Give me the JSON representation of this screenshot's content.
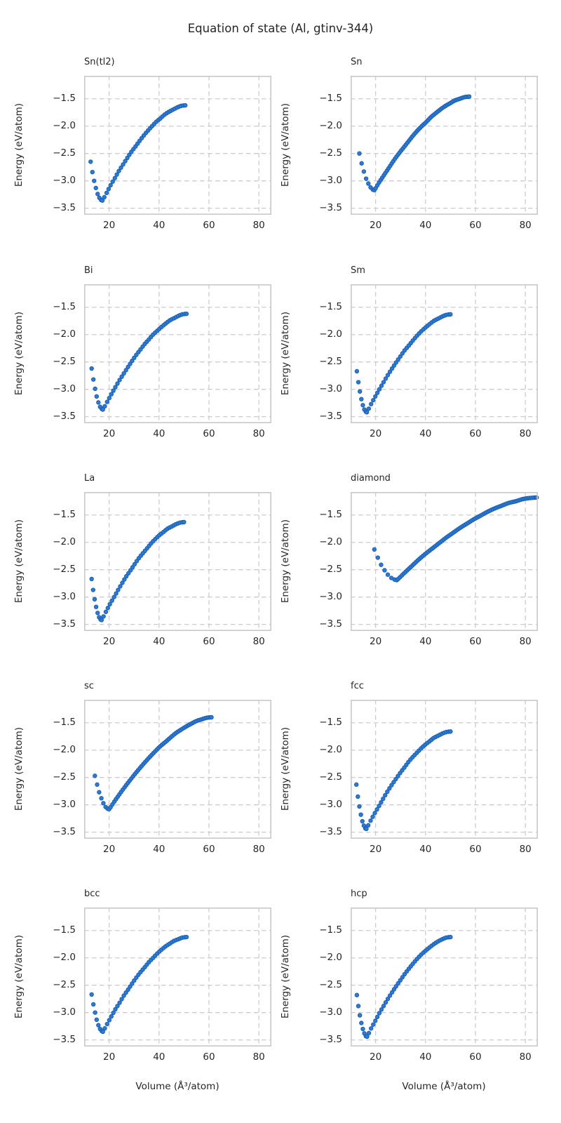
{
  "figure_title": "Equation of state (Al, gtinv-344)",
  "colors": {
    "marker_fill": "#2e7bd2",
    "marker_edge": "#1a5fb4",
    "grid": "#cccccc",
    "spine": "#c9c9c9",
    "text": "#262626",
    "background": "#ffffff"
  },
  "axes": {
    "xlabel": "Volume (Å³/atom)",
    "ylabel": "Energy (eV/atom)",
    "xlim": [
      10,
      85
    ],
    "ylim": [
      -3.62,
      -1.08
    ],
    "xticks": [
      20,
      40,
      60,
      80
    ],
    "yticks": [
      -1.5,
      -2.0,
      -2.5,
      -3.0,
      -3.5
    ],
    "xtick_labels": [
      "20",
      "40",
      "60",
      "80"
    ],
    "ytick_labels": [
      "−1.5",
      "−2.0",
      "−2.5",
      "−3.0",
      "−3.5"
    ],
    "grid": "dashed"
  },
  "chart_data": [
    {
      "type": "scatter",
      "title": "Sn(tl2)",
      "points": [
        [
          12.6,
          -2.65
        ],
        [
          13.3,
          -2.84
        ],
        [
          14.0,
          -3.0
        ],
        [
          14.7,
          -3.13
        ],
        [
          15.4,
          -3.24
        ],
        [
          16.1,
          -3.31
        ],
        [
          16.8,
          -3.35
        ],
        [
          17.3,
          -3.36
        ],
        [
          19.0,
          -3.22
        ],
        [
          20.6,
          -3.08
        ],
        [
          22.3,
          -2.95
        ],
        [
          23.9,
          -2.82
        ],
        [
          25.6,
          -2.7
        ],
        [
          27.3,
          -2.58
        ],
        [
          28.9,
          -2.47
        ],
        [
          30.6,
          -2.37
        ],
        [
          32.2,
          -2.27
        ],
        [
          33.9,
          -2.17
        ],
        [
          35.6,
          -2.08
        ],
        [
          37.2,
          -2.0
        ],
        [
          38.9,
          -1.92
        ],
        [
          40.5,
          -1.86
        ],
        [
          42.2,
          -1.79
        ],
        [
          43.9,
          -1.74
        ],
        [
          45.5,
          -1.7
        ],
        [
          47.2,
          -1.66
        ],
        [
          48.8,
          -1.63
        ],
        [
          50.5,
          -1.62
        ]
      ]
    },
    {
      "type": "scatter",
      "title": "Sn",
      "points": [
        [
          13.5,
          -2.5
        ],
        [
          14.4,
          -2.68
        ],
        [
          15.3,
          -2.83
        ],
        [
          16.2,
          -2.96
        ],
        [
          17.1,
          -3.05
        ],
        [
          18.0,
          -3.12
        ],
        [
          18.9,
          -3.16
        ],
        [
          19.5,
          -3.17
        ],
        [
          21.4,
          -3.03
        ],
        [
          23.3,
          -2.9
        ],
        [
          25.2,
          -2.77
        ],
        [
          27.1,
          -2.64
        ],
        [
          29.0,
          -2.52
        ],
        [
          30.9,
          -2.41
        ],
        [
          32.8,
          -2.3
        ],
        [
          34.7,
          -2.19
        ],
        [
          36.6,
          -2.09
        ],
        [
          38.5,
          -2.0
        ],
        [
          40.4,
          -1.92
        ],
        [
          42.3,
          -1.83
        ],
        [
          44.2,
          -1.76
        ],
        [
          46.1,
          -1.69
        ],
        [
          48.0,
          -1.63
        ],
        [
          49.9,
          -1.58
        ],
        [
          51.8,
          -1.53
        ],
        [
          53.7,
          -1.5
        ],
        [
          55.6,
          -1.47
        ],
        [
          57.5,
          -1.46
        ]
      ]
    },
    {
      "type": "scatter",
      "title": "Bi",
      "points": [
        [
          13.0,
          -2.62
        ],
        [
          13.7,
          -2.82
        ],
        [
          14.4,
          -2.99
        ],
        [
          15.0,
          -3.13
        ],
        [
          15.7,
          -3.24
        ],
        [
          16.4,
          -3.32
        ],
        [
          17.1,
          -3.36
        ],
        [
          17.5,
          -3.37
        ],
        [
          19.2,
          -3.23
        ],
        [
          20.9,
          -3.09
        ],
        [
          22.5,
          -2.96
        ],
        [
          24.2,
          -2.83
        ],
        [
          25.9,
          -2.71
        ],
        [
          27.6,
          -2.59
        ],
        [
          29.2,
          -2.48
        ],
        [
          30.9,
          -2.37
        ],
        [
          32.6,
          -2.27
        ],
        [
          34.3,
          -2.17
        ],
        [
          35.9,
          -2.09
        ],
        [
          37.6,
          -2.0
        ],
        [
          39.3,
          -1.93
        ],
        [
          41.0,
          -1.86
        ],
        [
          42.6,
          -1.8
        ],
        [
          44.3,
          -1.74
        ],
        [
          46.0,
          -1.7
        ],
        [
          47.7,
          -1.66
        ],
        [
          49.3,
          -1.63
        ],
        [
          51.0,
          -1.62
        ]
      ]
    },
    {
      "type": "scatter",
      "title": "Sm",
      "points": [
        [
          12.5,
          -2.67
        ],
        [
          13.1,
          -2.87
        ],
        [
          13.7,
          -3.04
        ],
        [
          14.3,
          -3.18
        ],
        [
          14.9,
          -3.29
        ],
        [
          15.5,
          -3.37
        ],
        [
          16.1,
          -3.41
        ],
        [
          16.5,
          -3.42
        ],
        [
          18.2,
          -3.27
        ],
        [
          19.9,
          -3.13
        ],
        [
          21.5,
          -3.0
        ],
        [
          23.2,
          -2.87
        ],
        [
          24.9,
          -2.74
        ],
        [
          26.6,
          -2.62
        ],
        [
          28.2,
          -2.51
        ],
        [
          29.9,
          -2.4
        ],
        [
          31.6,
          -2.29
        ],
        [
          33.3,
          -2.2
        ],
        [
          34.9,
          -2.11
        ],
        [
          36.6,
          -2.02
        ],
        [
          38.3,
          -1.94
        ],
        [
          40.0,
          -1.87
        ],
        [
          41.6,
          -1.81
        ],
        [
          43.3,
          -1.75
        ],
        [
          45.0,
          -1.71
        ],
        [
          46.7,
          -1.67
        ],
        [
          48.3,
          -1.64
        ],
        [
          50.0,
          -1.63
        ]
      ]
    },
    {
      "type": "scatter",
      "title": "La",
      "points": [
        [
          13.0,
          -2.67
        ],
        [
          13.6,
          -2.87
        ],
        [
          14.2,
          -3.04
        ],
        [
          14.8,
          -3.18
        ],
        [
          15.4,
          -3.29
        ],
        [
          16.0,
          -3.37
        ],
        [
          16.6,
          -3.41
        ],
        [
          17.0,
          -3.42
        ],
        [
          18.7,
          -3.27
        ],
        [
          20.3,
          -3.13
        ],
        [
          22.0,
          -3.0
        ],
        [
          23.6,
          -2.87
        ],
        [
          25.3,
          -2.74
        ],
        [
          26.9,
          -2.62
        ],
        [
          28.6,
          -2.51
        ],
        [
          30.2,
          -2.4
        ],
        [
          31.9,
          -2.29
        ],
        [
          33.5,
          -2.2
        ],
        [
          35.2,
          -2.11
        ],
        [
          36.8,
          -2.02
        ],
        [
          38.5,
          -1.94
        ],
        [
          40.1,
          -1.87
        ],
        [
          41.8,
          -1.81
        ],
        [
          43.4,
          -1.75
        ],
        [
          45.1,
          -1.71
        ],
        [
          46.7,
          -1.67
        ],
        [
          48.4,
          -1.64
        ],
        [
          50.0,
          -1.63
        ]
      ]
    },
    {
      "type": "scatter",
      "title": "diamond",
      "points": [
        [
          19.5,
          -2.13
        ],
        [
          20.9,
          -2.28
        ],
        [
          22.2,
          -2.41
        ],
        [
          23.6,
          -2.51
        ],
        [
          24.9,
          -2.59
        ],
        [
          26.3,
          -2.65
        ],
        [
          27.6,
          -2.68
        ],
        [
          28.5,
          -2.69
        ],
        [
          31.3,
          -2.57
        ],
        [
          34.1,
          -2.45
        ],
        [
          36.9,
          -2.33
        ],
        [
          39.7,
          -2.22
        ],
        [
          42.5,
          -2.12
        ],
        [
          45.3,
          -2.02
        ],
        [
          48.1,
          -1.92
        ],
        [
          50.9,
          -1.83
        ],
        [
          53.7,
          -1.74
        ],
        [
          56.5,
          -1.66
        ],
        [
          59.3,
          -1.58
        ],
        [
          62.1,
          -1.51
        ],
        [
          64.9,
          -1.44
        ],
        [
          67.7,
          -1.38
        ],
        [
          70.5,
          -1.33
        ],
        [
          73.3,
          -1.28
        ],
        [
          76.1,
          -1.25
        ],
        [
          78.9,
          -1.21
        ],
        [
          81.7,
          -1.19
        ],
        [
          84.5,
          -1.18
        ]
      ]
    },
    {
      "type": "scatter",
      "title": "sc",
      "points": [
        [
          14.3,
          -2.47
        ],
        [
          15.2,
          -2.63
        ],
        [
          16.0,
          -2.77
        ],
        [
          16.9,
          -2.88
        ],
        [
          17.7,
          -2.97
        ],
        [
          18.6,
          -3.04
        ],
        [
          19.4,
          -3.07
        ],
        [
          20.0,
          -3.08
        ],
        [
          22.1,
          -2.94
        ],
        [
          24.1,
          -2.81
        ],
        [
          26.2,
          -2.68
        ],
        [
          28.2,
          -2.56
        ],
        [
          30.3,
          -2.44
        ],
        [
          32.3,
          -2.33
        ],
        [
          34.4,
          -2.22
        ],
        [
          36.4,
          -2.12
        ],
        [
          38.5,
          -2.02
        ],
        [
          40.5,
          -1.93
        ],
        [
          42.6,
          -1.85
        ],
        [
          44.6,
          -1.77
        ],
        [
          46.7,
          -1.69
        ],
        [
          48.7,
          -1.63
        ],
        [
          50.8,
          -1.57
        ],
        [
          52.8,
          -1.52
        ],
        [
          54.9,
          -1.47
        ],
        [
          56.9,
          -1.44
        ],
        [
          59.0,
          -1.41
        ],
        [
          61.0,
          -1.4
        ]
      ]
    },
    {
      "type": "scatter",
      "title": "fcc",
      "points": [
        [
          12.3,
          -2.63
        ],
        [
          12.9,
          -2.85
        ],
        [
          13.5,
          -3.03
        ],
        [
          14.1,
          -3.18
        ],
        [
          14.7,
          -3.3
        ],
        [
          15.3,
          -3.38
        ],
        [
          15.9,
          -3.43
        ],
        [
          16.3,
          -3.44
        ],
        [
          18.0,
          -3.29
        ],
        [
          19.7,
          -3.15
        ],
        [
          21.4,
          -3.02
        ],
        [
          23.0,
          -2.89
        ],
        [
          24.7,
          -2.76
        ],
        [
          26.4,
          -2.64
        ],
        [
          28.1,
          -2.53
        ],
        [
          29.8,
          -2.42
        ],
        [
          31.5,
          -2.32
        ],
        [
          33.1,
          -2.22
        ],
        [
          34.8,
          -2.13
        ],
        [
          36.5,
          -2.05
        ],
        [
          38.2,
          -1.97
        ],
        [
          39.9,
          -1.9
        ],
        [
          41.6,
          -1.84
        ],
        [
          43.2,
          -1.78
        ],
        [
          44.9,
          -1.74
        ],
        [
          46.6,
          -1.7
        ],
        [
          48.3,
          -1.67
        ],
        [
          50.0,
          -1.66
        ]
      ]
    },
    {
      "type": "scatter",
      "title": "bcc",
      "points": [
        [
          13.0,
          -2.67
        ],
        [
          13.7,
          -2.85
        ],
        [
          14.4,
          -3.0
        ],
        [
          15.0,
          -3.13
        ],
        [
          15.7,
          -3.23
        ],
        [
          16.4,
          -3.3
        ],
        [
          17.1,
          -3.34
        ],
        [
          17.5,
          -3.35
        ],
        [
          19.2,
          -3.21
        ],
        [
          20.9,
          -3.07
        ],
        [
          22.5,
          -2.94
        ],
        [
          24.2,
          -2.82
        ],
        [
          25.9,
          -2.69
        ],
        [
          27.6,
          -2.58
        ],
        [
          29.2,
          -2.47
        ],
        [
          30.9,
          -2.36
        ],
        [
          32.6,
          -2.26
        ],
        [
          34.3,
          -2.17
        ],
        [
          35.9,
          -2.08
        ],
        [
          37.6,
          -2.0
        ],
        [
          39.3,
          -1.92
        ],
        [
          41.0,
          -1.85
        ],
        [
          42.6,
          -1.79
        ],
        [
          44.3,
          -1.74
        ],
        [
          46.0,
          -1.69
        ],
        [
          47.7,
          -1.66
        ],
        [
          49.3,
          -1.63
        ],
        [
          51.0,
          -1.62
        ]
      ]
    },
    {
      "type": "scatter",
      "title": "hcp",
      "points": [
        [
          12.5,
          -2.68
        ],
        [
          13.1,
          -2.88
        ],
        [
          13.7,
          -3.05
        ],
        [
          14.3,
          -3.19
        ],
        [
          14.9,
          -3.3
        ],
        [
          15.5,
          -3.38
        ],
        [
          16.1,
          -3.43
        ],
        [
          16.6,
          -3.44
        ],
        [
          18.2,
          -3.29
        ],
        [
          19.9,
          -3.15
        ],
        [
          21.5,
          -3.01
        ],
        [
          23.2,
          -2.88
        ],
        [
          24.9,
          -2.75
        ],
        [
          26.6,
          -2.63
        ],
        [
          28.2,
          -2.52
        ],
        [
          29.9,
          -2.41
        ],
        [
          31.6,
          -2.3
        ],
        [
          33.3,
          -2.2
        ],
        [
          34.9,
          -2.11
        ],
        [
          36.6,
          -2.02
        ],
        [
          38.3,
          -1.94
        ],
        [
          40.0,
          -1.87
        ],
        [
          41.6,
          -1.81
        ],
        [
          43.3,
          -1.75
        ],
        [
          45.0,
          -1.7
        ],
        [
          46.7,
          -1.66
        ],
        [
          48.3,
          -1.63
        ],
        [
          50.0,
          -1.62
        ]
      ]
    }
  ]
}
